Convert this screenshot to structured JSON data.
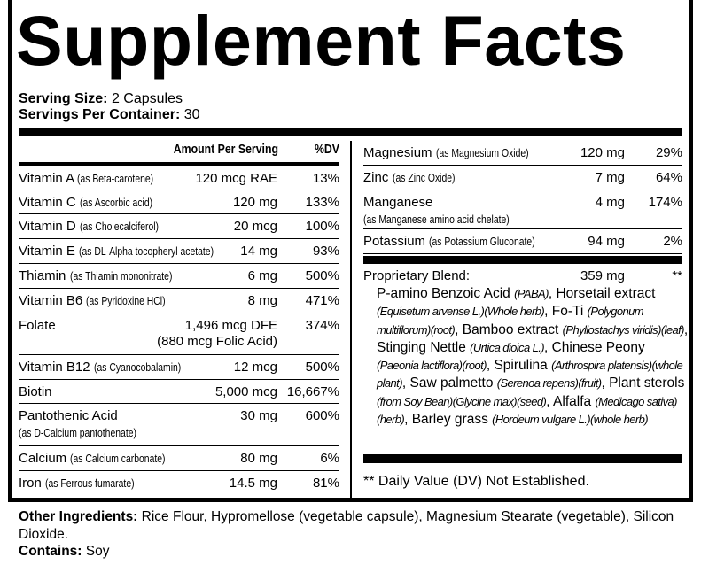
{
  "title": "Supplement Facts",
  "serving_size": {
    "label": "Serving Size:",
    "value": "2 Capsules"
  },
  "servings_per_container": {
    "label": "Servings Per Container:",
    "value": "30"
  },
  "header": {
    "amount": "Amount Per Serving",
    "dv": "%DV"
  },
  "left_rows": [
    {
      "name": "Vitamin A",
      "source": "(as Beta-carotene)",
      "amount": "120 mcg RAE",
      "dv": "13%"
    },
    {
      "name": "Vitamin C",
      "source": "(as Ascorbic acid)",
      "amount": "120 mg",
      "dv": "133%"
    },
    {
      "name": "Vitamin D",
      "source": "(as Cholecalciferol)",
      "amount": "20 mcg",
      "dv": "100%"
    },
    {
      "name": "Vitamin E",
      "source": "(as DL-Alpha tocopheryl acetate)",
      "amount": "14 mg",
      "dv": "93%"
    },
    {
      "name": "Thiamin",
      "source": "(as Thiamin mononitrate)",
      "amount": "6 mg",
      "dv": "500%"
    },
    {
      "name": "Vitamin B6",
      "source": "(as Pyridoxine HCl)",
      "amount": "8 mg",
      "dv": "471%"
    },
    {
      "name": "Folate",
      "source": "",
      "amount": "1,496 mcg DFE",
      "amount_sub": "(880 mcg Folic Acid)",
      "dv": "374%"
    },
    {
      "name": "Vitamin B12",
      "source": "(as Cyanocobalamin)",
      "amount": "12 mcg",
      "dv": "500%"
    },
    {
      "name": "Biotin",
      "source": "",
      "amount": "5,000 mcg",
      "dv": "16,667%"
    },
    {
      "name": "Pantothenic Acid",
      "source": "(as  D-Calcium pantothenate)",
      "source_block": true,
      "amount": "30 mg",
      "dv": "600%"
    },
    {
      "name": "Calcium",
      "source": "(as Calcium carbonate)",
      "amount": "80 mg",
      "dv": "6%"
    },
    {
      "name": "Iron",
      "source": "(as Ferrous fumarate)",
      "amount": "14.5 mg",
      "dv": "81%"
    }
  ],
  "right_rows": [
    {
      "name": "Magnesium",
      "source": "(as Magnesium Oxide)",
      "amount": "120 mg",
      "dv": "29%"
    },
    {
      "name": "Zinc",
      "source": "(as Zinc Oxide)",
      "amount": "7 mg",
      "dv": "64%"
    },
    {
      "name": "Manganese",
      "source": "(as Manganese amino acid chelate)",
      "source_block": true,
      "amount": "4 mg",
      "dv": "174%"
    },
    {
      "name": "Potassium",
      "source": "(as Potassium Gluconate)",
      "amount": "94 mg",
      "dv": "2%"
    }
  ],
  "proprietary": {
    "name": "Proprietary Blend:",
    "amount": "359 mg",
    "dv": "**"
  },
  "blend_parts": [
    {
      "t": "P-amino Benzoic Acid "
    },
    {
      "i": "(PABA)"
    },
    {
      "t": ", Horsetail extract "
    },
    {
      "i": "(Equisetum arvense L.)(Whole herb)"
    },
    {
      "t": ", Fo-Ti "
    },
    {
      "i": "(Polygonum multiflorum)(root)"
    },
    {
      "t": ", Bamboo extract "
    },
    {
      "i": "(Phyllostachys viridis)(leaf)"
    },
    {
      "t": ", Stinging Nettle  "
    },
    {
      "i": "(Urtica dioica L.)"
    },
    {
      "t": ", Chinese Peony "
    },
    {
      "i": "(Paeonia lactiflora)(root)"
    },
    {
      "t": ", Spirulina "
    },
    {
      "i": "(Arthrospira platensis)(whole plant)"
    },
    {
      "t": ", Saw palmetto "
    },
    {
      "i": "(Serenoa repens)(fruit)"
    },
    {
      "t": ", Plant sterols "
    },
    {
      "i": "(from Soy Bean)(Glycine max)(seed)"
    },
    {
      "t": ", Alfalfa "
    },
    {
      "i": "(Medicago sativa)(herb)"
    },
    {
      "t": ", Barley grass "
    },
    {
      "i": "(Hordeum vulgare L.)(whole herb)"
    }
  ],
  "dv_note": "** Daily Value (DV) Not Established.",
  "other_ingredients": {
    "label": "Other Ingredients:",
    "value": " Rice Flour, Hypromellose (vegetable capsule), Magnesium Stearate (vegetable), Silicon Dioxide."
  },
  "contains": {
    "label": "Contains:",
    "value": " Soy"
  }
}
